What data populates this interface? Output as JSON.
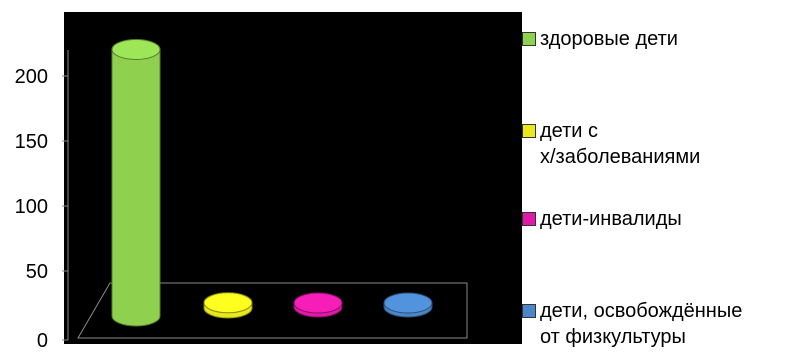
{
  "chart_data": {
    "type": "bar",
    "style": "3d-cylinder",
    "categories": [
      "здоровые дети",
      "дети с\n х/заболеваниями",
      "дети-инвалиды",
      "дети, освобождённые\nот физкультуры"
    ],
    "series": [
      {
        "values": [
          205,
          4,
          1,
          1
        ],
        "data_labels": [
          "",
          "",
          "",
          ""
        ],
        "colors": [
          "#8fd14f",
          "#e8e81c",
          "#e01aa8",
          "#4a86c8"
        ]
      }
    ],
    "y_ticks": [
      "0",
      "50",
      "100",
      "150",
      "200"
    ],
    "ylim": [
      0,
      240
    ],
    "background": "#000000",
    "legend": "right",
    "grid": false
  }
}
